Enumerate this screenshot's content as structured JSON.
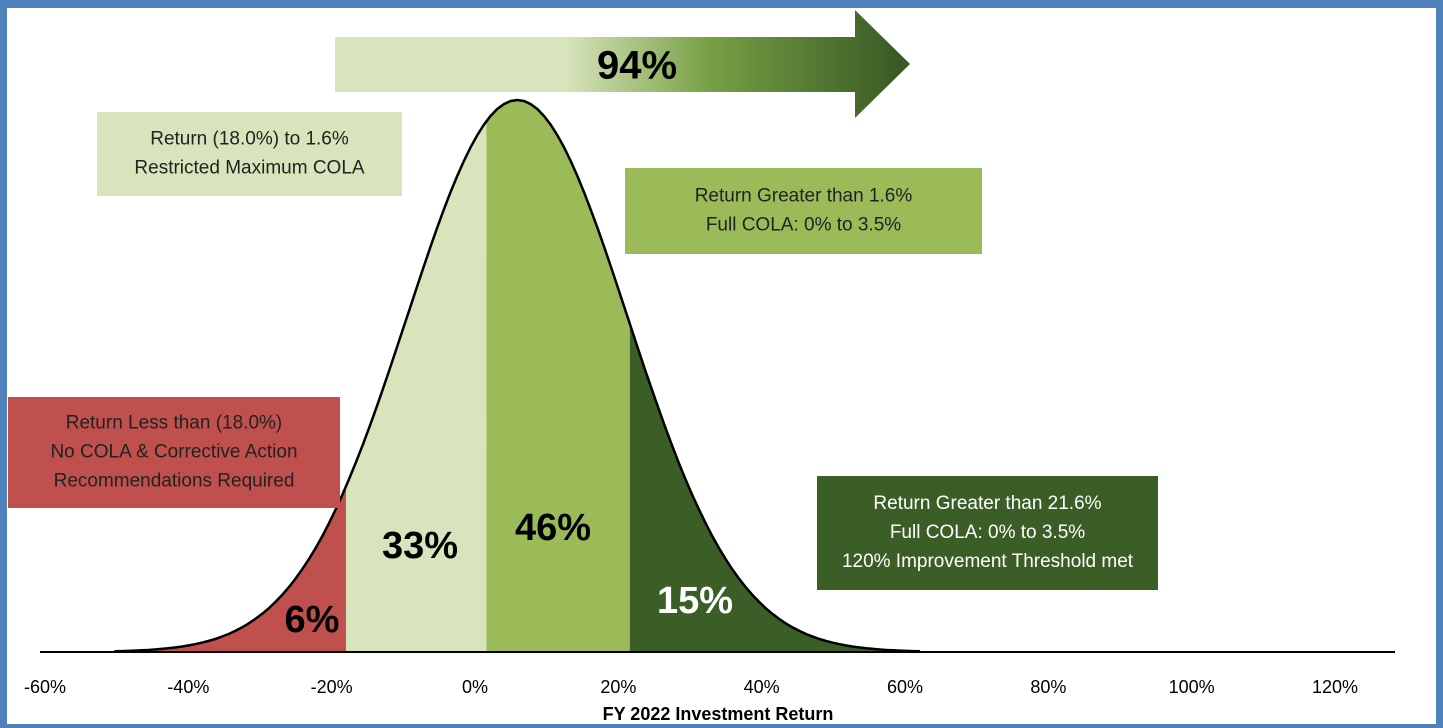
{
  "chart_data": {
    "type": "distribution",
    "xlabel": "FY 2022 Investment Return",
    "xlim": [
      -60,
      120
    ],
    "xticks": [
      {
        "value": -60,
        "label": "-60%"
      },
      {
        "value": -40,
        "label": "-40%"
      },
      {
        "value": -20,
        "label": "-20%"
      },
      {
        "value": 0,
        "label": "0%"
      },
      {
        "value": 20,
        "label": "20%"
      },
      {
        "value": 40,
        "label": "40%"
      },
      {
        "value": 60,
        "label": "60%"
      },
      {
        "value": 80,
        "label": "80%"
      },
      {
        "value": 100,
        "label": "100%"
      },
      {
        "value": 120,
        "label": "120%"
      }
    ],
    "mean": 5.9,
    "std": 15.4,
    "boundaries": [
      -18,
      1.6,
      21.6
    ],
    "values": [
      6,
      33,
      46,
      15
    ],
    "value_labels": [
      "6%",
      "33%",
      "46%",
      "15%"
    ],
    "colors": [
      "#c0504d",
      "#d8e4bc",
      "#9bbb59",
      "#3b5e27"
    ],
    "arrow_value": 94,
    "arrow_label": "94%",
    "annotations": [
      {
        "lines": [
          "Return Less than (18.0%)",
          "No COLA & Corrective Action",
          "Recommendations Required"
        ],
        "color": "#c0504d"
      },
      {
        "lines": [
          "Return (18.0%)  to 1.6%",
          "Restricted Maximum COLA"
        ],
        "color": "#d8e4bc"
      },
      {
        "lines": [
          "Return Greater than 1.6%",
          "Full COLA: 0% to 3.5%"
        ],
        "color": "#9bbb59"
      },
      {
        "lines": [
          "Return Greater than 21.6%",
          "Full COLA: 0% to 3.5%",
          "120% Improvement Threshold met"
        ],
        "color": "#3b5e27"
      }
    ]
  }
}
